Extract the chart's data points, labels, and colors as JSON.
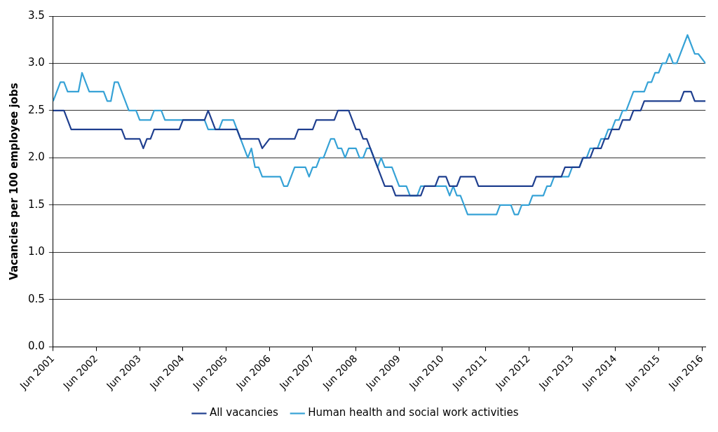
{
  "chart_data": {
    "type": "line",
    "ylabel": "Vacancies per 100 employee jobs",
    "xlim": [
      "2001-06",
      "2016-07"
    ],
    "xticks": [
      {
        "value": "2001-06",
        "label": "Jun 2001"
      },
      {
        "value": "2002-06",
        "label": "Jun 2002"
      },
      {
        "value": "2003-06",
        "label": "Jun 2003"
      },
      {
        "value": "2004-06",
        "label": "Jun 2004"
      },
      {
        "value": "2005-06",
        "label": "Jun 2005"
      },
      {
        "value": "2006-06",
        "label": "Jun 2006"
      },
      {
        "value": "2007-06",
        "label": "Jun 2007"
      },
      {
        "value": "2008-06",
        "label": "Jun 2008"
      },
      {
        "value": "2009-06",
        "label": "Jun 2009"
      },
      {
        "value": "2010-06",
        "label": "Jun 2010"
      },
      {
        "value": "2011-06",
        "label": "Jun 2011"
      },
      {
        "value": "2012-06",
        "label": "Jun 2012"
      },
      {
        "value": "2013-06",
        "label": "Jun 2013"
      },
      {
        "value": "2014-06",
        "label": "Jun 2014"
      },
      {
        "value": "2015-06",
        "label": "Jun 2015"
      },
      {
        "value": "2016-06",
        "label": "Jun 2016"
      }
    ],
    "ylim": [
      0,
      3.5
    ],
    "yticks": [
      {
        "value": 0,
        "label": "0.0"
      },
      {
        "value": 0.5,
        "label": "0.5"
      },
      {
        "value": 1,
        "label": "1.0"
      },
      {
        "value": 1.5,
        "label": "1.5"
      },
      {
        "value": 2,
        "label": "2.0"
      },
      {
        "value": 2.5,
        "label": "2.5"
      },
      {
        "value": 3,
        "label": "3.0"
      },
      {
        "value": 3.5,
        "label": "3.5"
      }
    ],
    "grid": "y",
    "legend": "bottom",
    "marker": "none",
    "line_style": "solid",
    "series": [
      {
        "name": "All vacancies",
        "color": "#1f3f8f",
        "x": [
          "2001-06",
          "2001-09",
          "2001-11",
          "2003-01",
          "2003-02",
          "2003-06",
          "2003-07",
          "2003-08",
          "2003-09",
          "2003-10",
          "2004-05",
          "2004-06",
          "2004-12",
          "2005-01",
          "2005-03",
          "2005-09",
          "2005-10",
          "2006-03",
          "2006-04",
          "2006-06",
          "2007-01",
          "2007-02",
          "2007-06",
          "2007-07",
          "2007-12",
          "2008-01",
          "2008-04",
          "2008-06",
          "2008-07",
          "2008-08",
          "2008-09",
          "2009-02",
          "2009-04",
          "2009-05",
          "2009-12",
          "2010-01",
          "2010-04",
          "2010-05",
          "2010-07",
          "2010-08",
          "2010-10",
          "2010-11",
          "2011-03",
          "2011-04",
          "2012-07",
          "2012-08",
          "2013-03",
          "2013-04",
          "2013-08",
          "2013-09",
          "2013-11",
          "2013-12",
          "2014-02",
          "2014-03",
          "2014-04",
          "2014-05",
          "2014-07",
          "2014-08",
          "2014-10",
          "2014-11",
          "2015-01",
          "2015-02",
          "2015-12",
          "2016-01",
          "2016-03",
          "2016-04",
          "2016-07"
        ],
        "values": [
          2.5,
          2.5,
          2.3,
          2.3,
          2.2,
          2.2,
          2.1,
          2.2,
          2.2,
          2.3,
          2.3,
          2.4,
          2.4,
          2.5,
          2.3,
          2.3,
          2.2,
          2.2,
          2.1,
          2.2,
          2.2,
          2.3,
          2.3,
          2.4,
          2.4,
          2.5,
          2.5,
          2.3,
          2.3,
          2.2,
          2.2,
          1.7,
          1.7,
          1.6,
          1.6,
          1.7,
          1.7,
          1.8,
          1.8,
          1.7,
          1.7,
          1.8,
          1.8,
          1.7,
          1.7,
          1.8,
          1.8,
          1.9,
          1.9,
          2.0,
          2.0,
          2.1,
          2.1,
          2.2,
          2.2,
          2.3,
          2.3,
          2.4,
          2.4,
          2.5,
          2.5,
          2.6,
          2.6,
          2.7,
          2.7,
          2.6,
          2.6
        ]
      },
      {
        "name": "Human health and social work activities",
        "color": "#36a2d6",
        "x": [
          "2001-06",
          "2001-08",
          "2001-09",
          "2001-10",
          "2002-01",
          "2002-02",
          "2002-04",
          "2002-08",
          "2002-09",
          "2002-10",
          "2002-11",
          "2002-12",
          "2003-03",
          "2003-05",
          "2003-06",
          "2003-09",
          "2003-10",
          "2003-12",
          "2004-01",
          "2004-12",
          "2005-01",
          "2005-04",
          "2005-05",
          "2005-08",
          "2005-12",
          "2006-01",
          "2006-02",
          "2006-03",
          "2006-04",
          "2006-09",
          "2006-10",
          "2006-11",
          "2007-01",
          "2007-04",
          "2007-05",
          "2007-06",
          "2007-07",
          "2007-08",
          "2007-09",
          "2007-11",
          "2007-12",
          "2008-01",
          "2008-02",
          "2008-03",
          "2008-04",
          "2008-06",
          "2008-07",
          "2008-08",
          "2008-09",
          "2008-10",
          "2008-11",
          "2008-12",
          "2009-01",
          "2009-02",
          "2009-04",
          "2009-06",
          "2009-08",
          "2009-09",
          "2009-11",
          "2009-12",
          "2010-07",
          "2010-08",
          "2010-09",
          "2010-10",
          "2010-11",
          "2011-01",
          "2011-09",
          "2011-10",
          "2012-01",
          "2012-02",
          "2012-03",
          "2012-04",
          "2012-06",
          "2012-07",
          "2012-10",
          "2012-11",
          "2012-12",
          "2013-01",
          "2013-05",
          "2013-06",
          "2013-08",
          "2013-09",
          "2013-10",
          "2013-11",
          "2014-01",
          "2014-02",
          "2014-03",
          "2014-04",
          "2014-05",
          "2014-06",
          "2014-07",
          "2014-08",
          "2014-09",
          "2014-11",
          "2015-02",
          "2015-03",
          "2015-04",
          "2015-05",
          "2015-06",
          "2015-07",
          "2015-08",
          "2015-09",
          "2015-10",
          "2015-11",
          "2016-02",
          "2016-04",
          "2016-05",
          "2016-07"
        ],
        "values": [
          2.6,
          2.8,
          2.8,
          2.7,
          2.7,
          2.9,
          2.7,
          2.7,
          2.6,
          2.6,
          2.8,
          2.8,
          2.5,
          2.5,
          2.4,
          2.4,
          2.5,
          2.5,
          2.4,
          2.4,
          2.3,
          2.3,
          2.4,
          2.4,
          2.0,
          2.1,
          1.9,
          1.9,
          1.8,
          1.8,
          1.7,
          1.7,
          1.9,
          1.9,
          1.8,
          1.9,
          1.9,
          2.0,
          2.0,
          2.2,
          2.2,
          2.1,
          2.1,
          2.0,
          2.1,
          2.1,
          2.0,
          2.0,
          2.1,
          2.1,
          2.0,
          1.9,
          2.0,
          1.9,
          1.9,
          1.7,
          1.7,
          1.6,
          1.6,
          1.7,
          1.7,
          1.6,
          1.7,
          1.6,
          1.6,
          1.4,
          1.4,
          1.5,
          1.5,
          1.4,
          1.4,
          1.5,
          1.5,
          1.6,
          1.6,
          1.7,
          1.7,
          1.8,
          1.8,
          1.9,
          1.9,
          2.0,
          2.0,
          2.1,
          2.1,
          2.2,
          2.2,
          2.3,
          2.3,
          2.4,
          2.4,
          2.5,
          2.5,
          2.7,
          2.7,
          2.8,
          2.8,
          2.9,
          2.9,
          3.0,
          3.0,
          3.1,
          3.0,
          3.0,
          3.3,
          3.1,
          3.1,
          3.0
        ]
      }
    ]
  }
}
